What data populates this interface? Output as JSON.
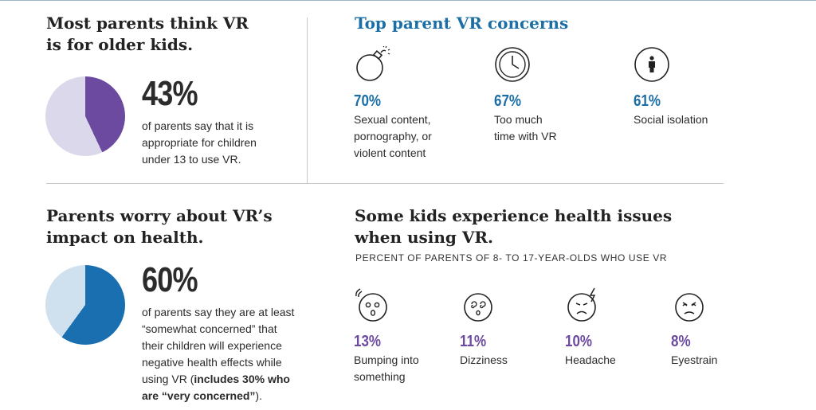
{
  "colors": {
    "heading_blue": "#1c6fa6",
    "purple": "#6b4aa0",
    "light_purple": "#dcd8ec",
    "blue": "#1a6fb0",
    "light_blue": "#cfe0ef"
  },
  "section1": {
    "title_line1": "Most parents think VR",
    "title_line2": "is for older kids.",
    "stat": "43%",
    "stat_value": 43,
    "desc_line1": "of parents say that it is",
    "desc_line2": "appropriate for children",
    "desc_line3": "under 13 to use VR."
  },
  "section2": {
    "title": "Top parent VR concerns",
    "items": [
      {
        "icon": "bomb-icon",
        "pct": "70%",
        "label_lines": [
          "Sexual content,",
          "pornography, or",
          "violent content"
        ]
      },
      {
        "icon": "clock-icon",
        "pct": "67%",
        "label_lines": [
          "Too much",
          "time with VR"
        ]
      },
      {
        "icon": "person-icon",
        "pct": "61%",
        "label_lines": [
          "Social isolation"
        ]
      }
    ]
  },
  "section3": {
    "title_line1": "Parents worry about VR’s",
    "title_line2": "impact on health.",
    "stat": "60%",
    "stat_value": 60,
    "desc_line1": "of parents say they are at least",
    "desc_line2": "“somewhat concerned” that",
    "desc_line3": "their children will experience",
    "desc_line4": "negative health effects while",
    "desc_line5_plain": "using VR (",
    "desc_line5_bold": "includes 30% who",
    "desc_line6_bold": "are “very concerned”",
    "desc_line6_plain": ")."
  },
  "section4": {
    "title_line1": "Some kids experience health issues",
    "title_line2": "when using VR.",
    "subtitle": "PERCENT OF PARENTS OF 8- TO 17-YEAR-OLDS WHO USE VR",
    "items": [
      {
        "icon": "bumping-face-icon",
        "pct": "13%",
        "label_lines": [
          "Bumping into",
          "something"
        ]
      },
      {
        "icon": "dizzy-face-icon",
        "pct": "11%",
        "label_lines": [
          "Dizziness"
        ]
      },
      {
        "icon": "headache-face-icon",
        "pct": "10%",
        "label_lines": [
          "Headache"
        ]
      },
      {
        "icon": "eyestrain-face-icon",
        "pct": "8%",
        "label_lines": [
          "Eyestrain"
        ]
      }
    ]
  }
}
